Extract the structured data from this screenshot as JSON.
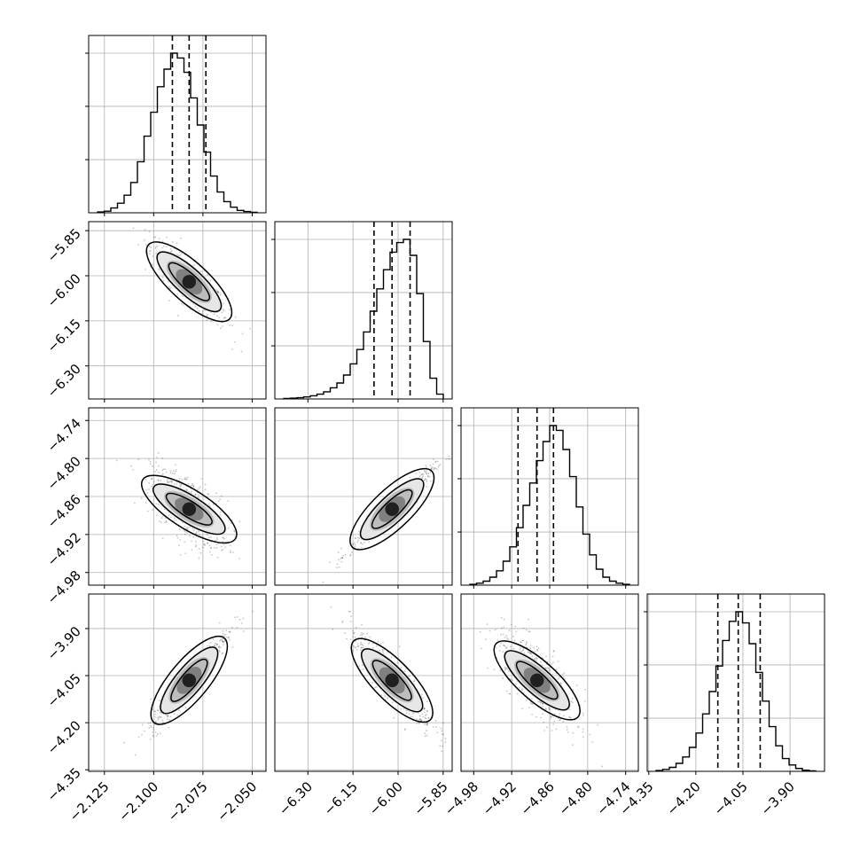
{
  "chart_data": {
    "type": "corner",
    "parameters": [
      {
        "ticks": [
          -2.125,
          -2.1,
          -2.075,
          -2.05
        ],
        "tick_labels": [
          "−2.125",
          "−2.100",
          "−2.075",
          "−2.050"
        ],
        "range": [
          -2.133,
          -2.043
        ]
      },
      {
        "ticks": [
          -6.3,
          -6.15,
          -6.0,
          -5.85
        ],
        "tick_labels": [
          "−6.30",
          "−6.15",
          "−6.00",
          "−5.85"
        ],
        "range": [
          -6.41,
          -5.82
        ]
      },
      {
        "ticks": [
          -4.98,
          -4.92,
          -4.86,
          -4.8,
          -4.74
        ],
        "tick_labels": [
          "−4.98",
          "−4.92",
          "−4.86",
          "−4.80",
          "−4.74"
        ],
        "range": [
          -5.0,
          -4.72
        ]
      },
      {
        "ticks": [
          -4.35,
          -4.2,
          -4.05,
          -3.9
        ],
        "tick_labels": [
          "−4.35",
          "−4.20",
          "−4.05",
          "−3.90"
        ],
        "range": [
          -4.355,
          -3.79
        ]
      }
    ],
    "quantiles": [
      [
        -2.0905,
        -2.082,
        -2.0735
      ],
      [
        -6.08,
        -6.02,
        -5.96
      ],
      [
        -4.91,
        -4.88,
        -4.854
      ],
      [
        -4.13,
        -4.065,
        -3.995
      ]
    ],
    "histograms": [
      [
        0.005,
        0.01,
        0.03,
        0.06,
        0.11,
        0.19,
        0.32,
        0.48,
        0.63,
        0.79,
        0.9,
        1.0,
        0.97,
        0.88,
        0.72,
        0.55,
        0.38,
        0.23,
        0.13,
        0.07,
        0.035,
        0.015,
        0.008,
        0.003
      ],
      [
        0.003,
        0.005,
        0.008,
        0.013,
        0.02,
        0.03,
        0.045,
        0.07,
        0.1,
        0.15,
        0.22,
        0.31,
        0.42,
        0.55,
        0.69,
        0.81,
        0.92,
        0.98,
        1.0,
        0.9,
        0.66,
        0.36,
        0.13,
        0.03
      ],
      [
        0.005,
        0.012,
        0.025,
        0.05,
        0.09,
        0.15,
        0.24,
        0.36,
        0.5,
        0.64,
        0.78,
        0.9,
        1.0,
        0.97,
        0.85,
        0.68,
        0.49,
        0.32,
        0.19,
        0.1,
        0.05,
        0.025,
        0.012,
        0.005
      ],
      [
        0.005,
        0.012,
        0.025,
        0.05,
        0.09,
        0.15,
        0.24,
        0.36,
        0.5,
        0.66,
        0.82,
        0.94,
        1.0,
        0.93,
        0.8,
        0.62,
        0.44,
        0.28,
        0.16,
        0.08,
        0.04,
        0.018,
        0.007,
        0.003
      ]
    ],
    "diag_yticks": [
      0.333,
      0.667,
      1.0
    ],
    "correlations": {
      "1,0": -0.85,
      "2,0": -0.6,
      "2,1": 0.97,
      "3,0": 0.95,
      "3,1": -0.88,
      "3,2": -0.75
    },
    "grid": true
  }
}
